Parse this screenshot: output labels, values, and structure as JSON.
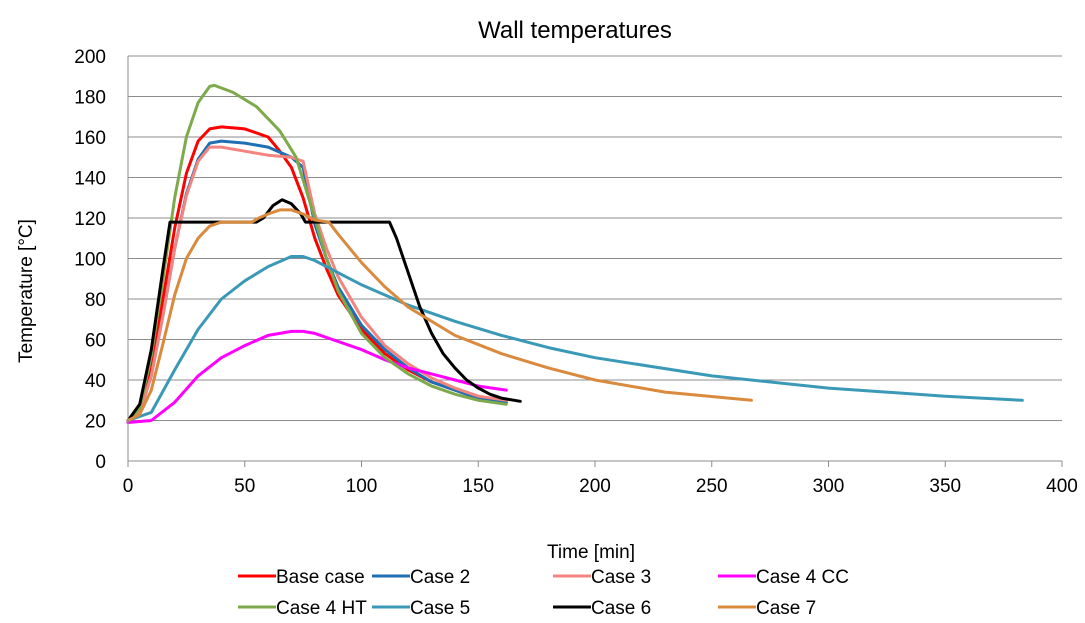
{
  "chart_data": {
    "type": "line",
    "title": "Wall temperatures",
    "xlabel": "Time [min]",
    "ylabel": "Temperature [°C]",
    "xlim": [
      0,
      400
    ],
    "ylim": [
      0,
      200
    ],
    "x_ticks": [
      "0",
      "50",
      "100",
      "150",
      "200",
      "250",
      "300",
      "350",
      "400"
    ],
    "y_ticks": [
      "0",
      "20",
      "40",
      "60",
      "80",
      "100",
      "120",
      "140",
      "160",
      "180",
      "200"
    ],
    "grid": "horizontal",
    "legend_position": "bottom",
    "series": [
      {
        "name": "Base case",
        "color": "#ff0000",
        "points": [
          [
            0,
            20
          ],
          [
            5,
            24
          ],
          [
            10,
            45
          ],
          [
            15,
            80
          ],
          [
            20,
            115
          ],
          [
            25,
            142
          ],
          [
            30,
            158
          ],
          [
            35,
            164
          ],
          [
            40,
            165
          ],
          [
            50,
            164
          ],
          [
            60,
            160
          ],
          [
            65,
            153
          ],
          [
            70,
            145
          ],
          [
            75,
            130
          ],
          [
            80,
            110
          ],
          [
            85,
            95
          ],
          [
            90,
            82
          ],
          [
            100,
            65
          ],
          [
            110,
            53
          ],
          [
            120,
            45
          ],
          [
            130,
            39
          ],
          [
            140,
            35
          ],
          [
            150,
            31
          ],
          [
            162,
            29
          ]
        ]
      },
      {
        "name": "Case 2",
        "color": "#1f6fb4",
        "points": [
          [
            0,
            20
          ],
          [
            5,
            24
          ],
          [
            10,
            42
          ],
          [
            15,
            72
          ],
          [
            20,
            105
          ],
          [
            25,
            132
          ],
          [
            30,
            149
          ],
          [
            35,
            157
          ],
          [
            40,
            158
          ],
          [
            50,
            157
          ],
          [
            60,
            155
          ],
          [
            70,
            150
          ],
          [
            75,
            145
          ],
          [
            80,
            117
          ],
          [
            85,
            100
          ],
          [
            90,
            86
          ],
          [
            100,
            67
          ],
          [
            110,
            55
          ],
          [
            120,
            46
          ],
          [
            130,
            39
          ],
          [
            140,
            35
          ],
          [
            150,
            31
          ],
          [
            162,
            29
          ]
        ]
      },
      {
        "name": "Case 3",
        "color": "#f4847f",
        "points": [
          [
            0,
            20
          ],
          [
            5,
            24
          ],
          [
            10,
            42
          ],
          [
            15,
            72
          ],
          [
            20,
            105
          ],
          [
            25,
            131
          ],
          [
            30,
            148
          ],
          [
            35,
            155
          ],
          [
            40,
            155
          ],
          [
            50,
            153
          ],
          [
            60,
            151
          ],
          [
            70,
            150
          ],
          [
            75,
            148
          ],
          [
            80,
            122
          ],
          [
            85,
            105
          ],
          [
            90,
            91
          ],
          [
            100,
            71
          ],
          [
            110,
            57
          ],
          [
            120,
            48
          ],
          [
            130,
            41
          ],
          [
            140,
            36
          ],
          [
            150,
            32
          ],
          [
            162,
            30
          ]
        ]
      },
      {
        "name": "Case 4 CC",
        "color": "#ff00ff",
        "points": [
          [
            0,
            19
          ],
          [
            10,
            20
          ],
          [
            20,
            29
          ],
          [
            30,
            42
          ],
          [
            40,
            51
          ],
          [
            50,
            57
          ],
          [
            60,
            62
          ],
          [
            70,
            64
          ],
          [
            75,
            64
          ],
          [
            80,
            63
          ],
          [
            90,
            59
          ],
          [
            100,
            55
          ],
          [
            110,
            50
          ],
          [
            120,
            46
          ],
          [
            130,
            43
          ],
          [
            140,
            40
          ],
          [
            150,
            37
          ],
          [
            162,
            35
          ]
        ]
      },
      {
        "name": "Case 4 HT",
        "color": "#7daa4b",
        "points": [
          [
            0,
            20
          ],
          [
            5,
            26
          ],
          [
            10,
            52
          ],
          [
            15,
            90
          ],
          [
            20,
            130
          ],
          [
            25,
            160
          ],
          [
            30,
            177
          ],
          [
            35,
            185
          ],
          [
            37,
            185.5
          ],
          [
            45,
            182
          ],
          [
            55,
            175
          ],
          [
            65,
            163
          ],
          [
            72,
            150
          ],
          [
            80,
            120
          ],
          [
            85,
            100
          ],
          [
            90,
            84
          ],
          [
            100,
            63
          ],
          [
            110,
            51
          ],
          [
            120,
            43
          ],
          [
            130,
            37
          ],
          [
            140,
            33
          ],
          [
            150,
            30
          ],
          [
            162,
            28
          ]
        ]
      },
      {
        "name": "Case 5",
        "color": "#3b99b8",
        "points": [
          [
            0,
            20
          ],
          [
            10,
            24
          ],
          [
            20,
            45
          ],
          [
            30,
            65
          ],
          [
            40,
            80
          ],
          [
            50,
            89
          ],
          [
            60,
            96
          ],
          [
            70,
            101
          ],
          [
            75,
            101
          ],
          [
            80,
            99
          ],
          [
            90,
            93
          ],
          [
            100,
            87
          ],
          [
            120,
            77
          ],
          [
            140,
            69
          ],
          [
            160,
            62
          ],
          [
            180,
            56
          ],
          [
            200,
            51
          ],
          [
            250,
            42
          ],
          [
            300,
            36
          ],
          [
            350,
            32
          ],
          [
            383,
            30
          ]
        ]
      },
      {
        "name": "Case 6",
        "color": "#000000",
        "points": [
          [
            0,
            20
          ],
          [
            5,
            28
          ],
          [
            10,
            55
          ],
          [
            15,
            95
          ],
          [
            18,
            118
          ],
          [
            55,
            118
          ],
          [
            58,
            120
          ],
          [
            62,
            126
          ],
          [
            66,
            129
          ],
          [
            70,
            127
          ],
          [
            74,
            122
          ],
          [
            76,
            118
          ],
          [
            112,
            118
          ],
          [
            115,
            110
          ],
          [
            120,
            93
          ],
          [
            125,
            76
          ],
          [
            130,
            63
          ],
          [
            135,
            53
          ],
          [
            140,
            46
          ],
          [
            145,
            40
          ],
          [
            150,
            36
          ],
          [
            155,
            33
          ],
          [
            160,
            31
          ],
          [
            168,
            29.5
          ]
        ]
      },
      {
        "name": "Case 7",
        "color": "#d98a3d",
        "points": [
          [
            0,
            20
          ],
          [
            5,
            23
          ],
          [
            10,
            35
          ],
          [
            15,
            58
          ],
          [
            20,
            82
          ],
          [
            25,
            100
          ],
          [
            30,
            110
          ],
          [
            35,
            116
          ],
          [
            40,
            118
          ],
          [
            53,
            118
          ],
          [
            56,
            120
          ],
          [
            60,
            122
          ],
          [
            65,
            124
          ],
          [
            70,
            124
          ],
          [
            75,
            122
          ],
          [
            80,
            119
          ],
          [
            86,
            118
          ],
          [
            90,
            112
          ],
          [
            100,
            98
          ],
          [
            110,
            86
          ],
          [
            120,
            76
          ],
          [
            140,
            62
          ],
          [
            160,
            53
          ],
          [
            180,
            46
          ],
          [
            200,
            40
          ],
          [
            230,
            34
          ],
          [
            267,
            30
          ]
        ]
      }
    ]
  }
}
